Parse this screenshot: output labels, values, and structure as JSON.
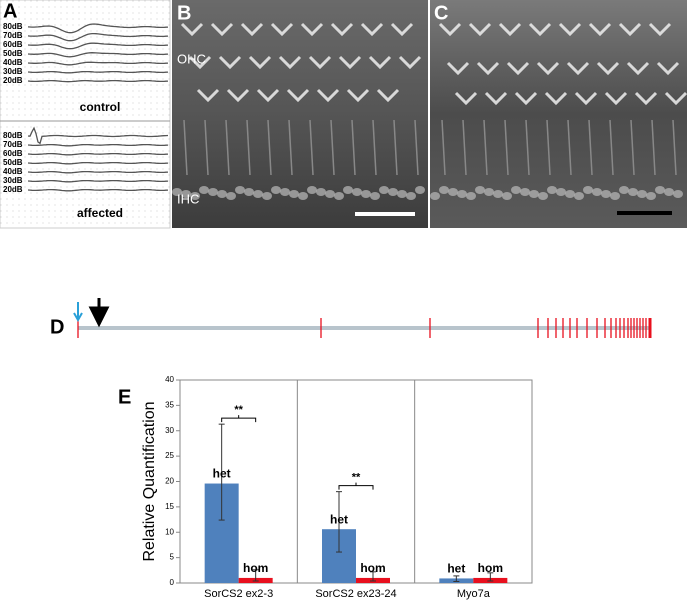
{
  "panel_a": {
    "label": "A",
    "control_levels": [
      "80dB",
      "70dB",
      "60dB",
      "50dB",
      "40dB",
      "30dB",
      "20dB"
    ],
    "control_label": "control",
    "affected_levels": [
      "80dB",
      "70dB",
      "60dB",
      "50dB",
      "40dB",
      "30dB",
      "20dB"
    ],
    "affected_label": "affected"
  },
  "panel_b": {
    "label": "B",
    "ohc": "OHC",
    "ihc": "IHC"
  },
  "panel_c": {
    "label": "C"
  },
  "panel_d": {
    "label": "D"
  },
  "chart_data": {
    "type": "bar",
    "label": "E",
    "ylabel": "Relative Quantification",
    "categories": [
      "SorCS2 ex2-3",
      "SorCS2 ex23-24",
      "Myo7a"
    ],
    "series": [
      {
        "name": "het",
        "color": "#4f81bd",
        "values": [
          19.6,
          10.6,
          0.9
        ],
        "err_low": [
          12.4,
          6.1,
          0.3
        ],
        "err_high": [
          31.3,
          18,
          1.4
        ]
      },
      {
        "name": "hom",
        "color": "#e8101e",
        "values": [
          1,
          1,
          1
        ],
        "err_low": [
          0.4,
          0.4,
          0.4
        ],
        "err_high": [
          2.6,
          2.2,
          2.0
        ]
      }
    ],
    "annotations": [
      {
        "text": "**",
        "category": 0
      },
      {
        "text": "**",
        "category": 1
      }
    ],
    "ylim": [
      0,
      40
    ],
    "yticks": [
      0,
      5,
      10,
      15,
      20,
      25,
      30,
      35,
      40
    ]
  }
}
